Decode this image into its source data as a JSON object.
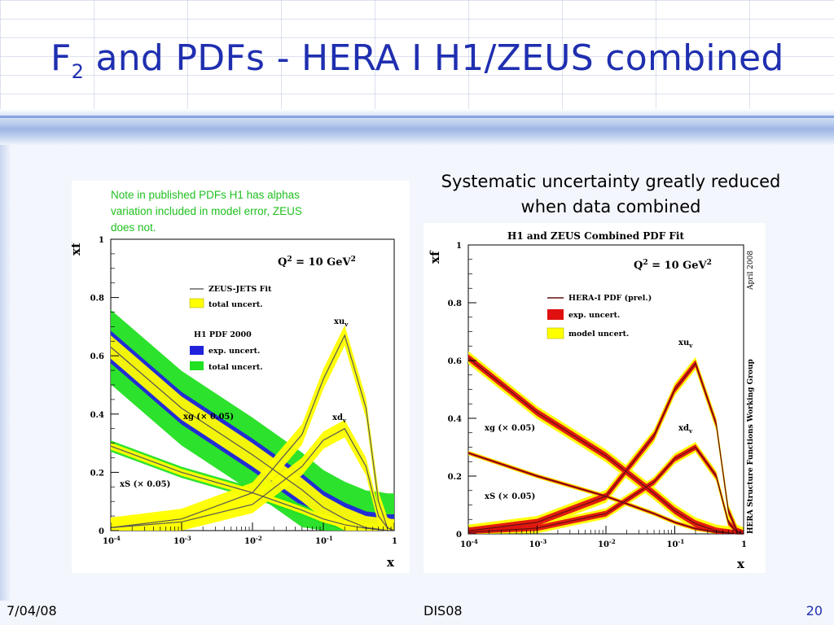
{
  "slide": {
    "title_main": "F",
    "title_sub": "2",
    "title_rest": " and PDFs - HERA I H1/ZEUS combined",
    "caption_line1": "Systematic uncertainty greatly reduced",
    "caption_line2": "when data combined",
    "note": [
      "Note in published PDFs H1 has alphas",
      "variation included in model error, ZEUS",
      "does not."
    ],
    "footer_date": "7/04/08",
    "footer_conf": "DIS08",
    "page_number": "20",
    "colors": {
      "title": "#1f2fb0",
      "note": "#20c020",
      "yellow": "#ffff00",
      "green": "#22e022",
      "blue": "#2222dd",
      "red": "#e01010",
      "darkred": "#601010"
    }
  },
  "chart_data": [
    {
      "type": "line",
      "title": "",
      "xlabel": "x",
      "ylabel": "xf",
      "xscale": "log",
      "xlim": [
        0.0001,
        1
      ],
      "ylim": [
        0,
        1
      ],
      "xticks": [
        "10-4",
        "10-3",
        "10-2",
        "10-1",
        "1"
      ],
      "yticks": [
        "0",
        "0.2",
        "0.4",
        "0.6",
        "0.8",
        "1"
      ],
      "annotation": "Q2 = 10 GeV2",
      "legend": [
        {
          "label": "ZEUS-JETS Fit"
        },
        {
          "label": "total uncert."
        },
        {
          "label": "H1 PDF 2000"
        },
        {
          "label": "exp. uncert."
        },
        {
          "label": "total uncert."
        }
      ],
      "curve_labels": [
        "xuv",
        "xdv",
        "xg (× 0.05)",
        "xS (× 0.05)"
      ],
      "series": [
        {
          "name": "xuv",
          "x": [
            0.0001,
            0.001,
            0.01,
            0.05,
            0.1,
            0.2,
            0.4,
            0.6,
            0.8,
            1
          ],
          "y": [
            0.01,
            0.04,
            0.13,
            0.33,
            0.52,
            0.67,
            0.42,
            0.1,
            0.01,
            0
          ]
        },
        {
          "name": "xdv",
          "x": [
            0.0001,
            0.001,
            0.01,
            0.05,
            0.1,
            0.2,
            0.4,
            0.6,
            0.8,
            1
          ],
          "y": [
            0.01,
            0.03,
            0.09,
            0.22,
            0.31,
            0.35,
            0.22,
            0.05,
            0.01,
            0
          ]
        },
        {
          "name": "xg (× 0.05)",
          "x": [
            0.0001,
            0.001,
            0.01,
            0.05,
            0.1,
            0.2,
            0.4,
            0.6,
            0.8,
            1
          ],
          "y": [
            0.63,
            0.42,
            0.26,
            0.14,
            0.08,
            0.04,
            0.01,
            0.005,
            0,
            0
          ]
        },
        {
          "name": "xS (× 0.05)",
          "x": [
            0.0001,
            0.001,
            0.01,
            0.05,
            0.1,
            0.2,
            0.4,
            0.6,
            0.8,
            1
          ],
          "y": [
            0.29,
            0.2,
            0.13,
            0.07,
            0.04,
            0.02,
            0.008,
            0.003,
            0,
            0
          ]
        }
      ]
    },
    {
      "type": "line",
      "title": "H1 and ZEUS Combined PDF Fit",
      "xlabel": "x",
      "ylabel": "xf",
      "xscale": "log",
      "xlim": [
        0.0001,
        1
      ],
      "ylim": [
        0,
        1
      ],
      "xticks": [
        "10-4",
        "10-3",
        "10-2",
        "10-1",
        "1"
      ],
      "yticks": [
        "0",
        "0.2",
        "0.4",
        "0.6",
        "0.8",
        "1"
      ],
      "annotation": "Q2 = 10 GeV2",
      "side_labels": [
        "April 2008",
        "HERA Structure Functions Working Group"
      ],
      "legend": [
        {
          "label": "HERA-I PDF (prel.)"
        },
        {
          "label": "exp. uncert."
        },
        {
          "label": "model uncert."
        }
      ],
      "curve_labels": [
        "xuv",
        "xdv",
        "xg (× 0.05)",
        "xS (× 0.05)"
      ],
      "series": [
        {
          "name": "xuv",
          "x": [
            0.0001,
            0.001,
            0.01,
            0.05,
            0.1,
            0.2,
            0.4,
            0.6,
            0.8,
            1
          ],
          "y": [
            0.01,
            0.04,
            0.13,
            0.34,
            0.5,
            0.59,
            0.38,
            0.08,
            0.01,
            0
          ]
        },
        {
          "name": "xdv",
          "x": [
            0.0001,
            0.001,
            0.01,
            0.05,
            0.1,
            0.2,
            0.4,
            0.6,
            0.8,
            1
          ],
          "y": [
            0.005,
            0.02,
            0.07,
            0.18,
            0.26,
            0.3,
            0.2,
            0.04,
            0.005,
            0
          ]
        },
        {
          "name": "xg (× 0.05)",
          "x": [
            0.0001,
            0.001,
            0.01,
            0.05,
            0.1,
            0.2,
            0.4,
            0.6,
            0.8,
            1
          ],
          "y": [
            0.61,
            0.42,
            0.27,
            0.14,
            0.08,
            0.035,
            0.01,
            0.004,
            0,
            0
          ]
        },
        {
          "name": "xS (× 0.05)",
          "x": [
            0.0001,
            0.001,
            0.01,
            0.05,
            0.1,
            0.2,
            0.4,
            0.6,
            0.8,
            1
          ],
          "y": [
            0.28,
            0.2,
            0.13,
            0.07,
            0.04,
            0.018,
            0.006,
            0.002,
            0,
            0
          ]
        }
      ]
    }
  ]
}
